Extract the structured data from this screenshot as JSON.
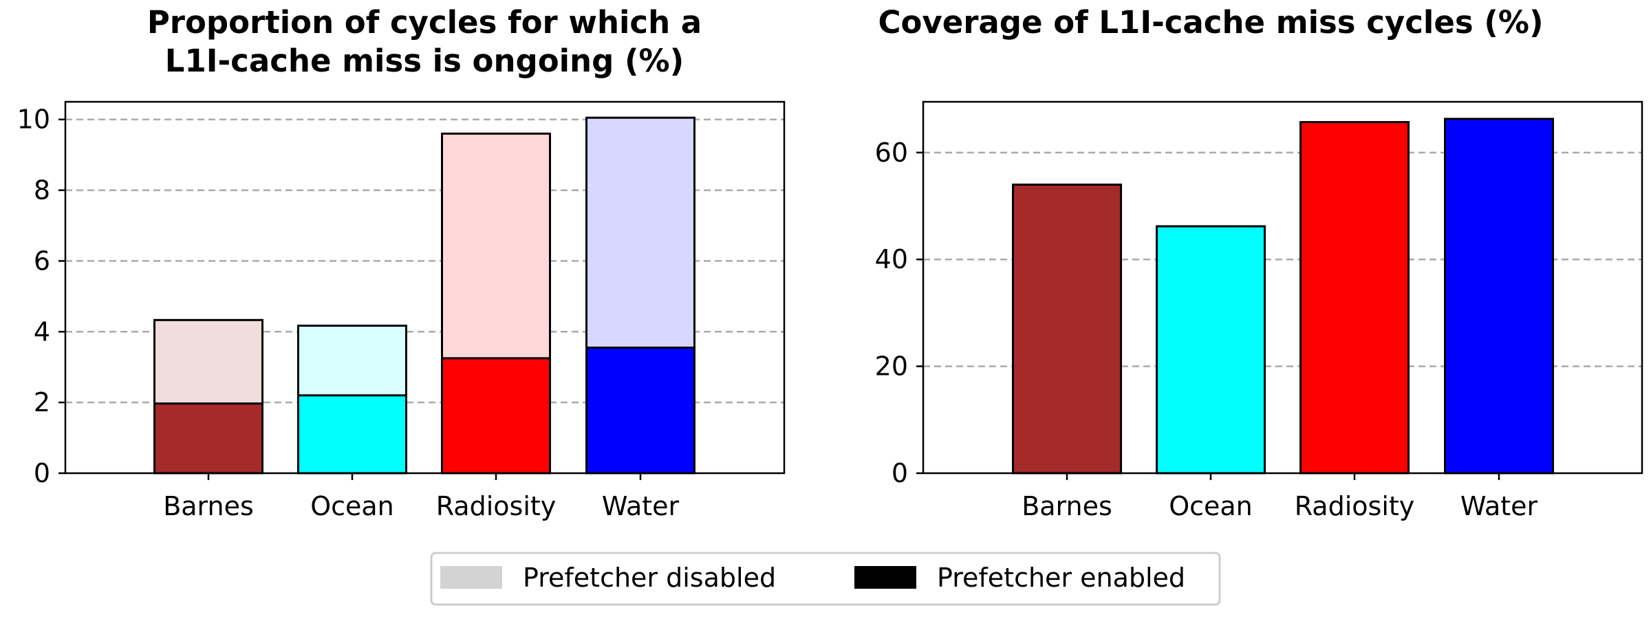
{
  "chart_data": [
    {
      "type": "bar",
      "title_lines": [
        "Proportion of cycles for which a",
        "L1I-cache miss is ongoing (%)"
      ],
      "categories": [
        "Barnes",
        "Ocean",
        "Radiosity",
        "Water"
      ],
      "series": [
        {
          "name": "Prefetcher enabled",
          "values": [
            1.97,
            2.2,
            3.25,
            3.55
          ],
          "colors": [
            "#a52a2a",
            "#00ffff",
            "#ff0000",
            "#0000ff"
          ]
        },
        {
          "name": "Prefetcher disabled",
          "values": [
            4.33,
            4.17,
            9.6,
            10.05
          ],
          "colors": [
            "#f0dddd",
            "#d7ffff",
            "#ffd8d8",
            "#d8d8ff"
          ]
        }
      ],
      "ylim": [
        0,
        10.5
      ],
      "yticks": [
        "0",
        "2",
        "4",
        "6",
        "8",
        "10"
      ],
      "grid": true
    },
    {
      "type": "bar",
      "title_lines": [
        "Coverage of L1I-cache miss cycles (%)"
      ],
      "categories": [
        "Barnes",
        "Ocean",
        "Radiosity",
        "Water"
      ],
      "values": [
        54.0,
        46.2,
        65.7,
        66.3
      ],
      "colors": [
        "#a52a2a",
        "#00ffff",
        "#ff0000",
        "#0000ff"
      ],
      "ylim": [
        0,
        69.5
      ],
      "yticks": [
        "0",
        "20",
        "40",
        "60"
      ],
      "grid": true
    }
  ],
  "legend": {
    "position": "bottom-center",
    "entries": [
      {
        "label": "Prefetcher disabled",
        "color": "#d3d3d3"
      },
      {
        "label": "Prefetcher enabled",
        "color": "#000000"
      }
    ]
  }
}
